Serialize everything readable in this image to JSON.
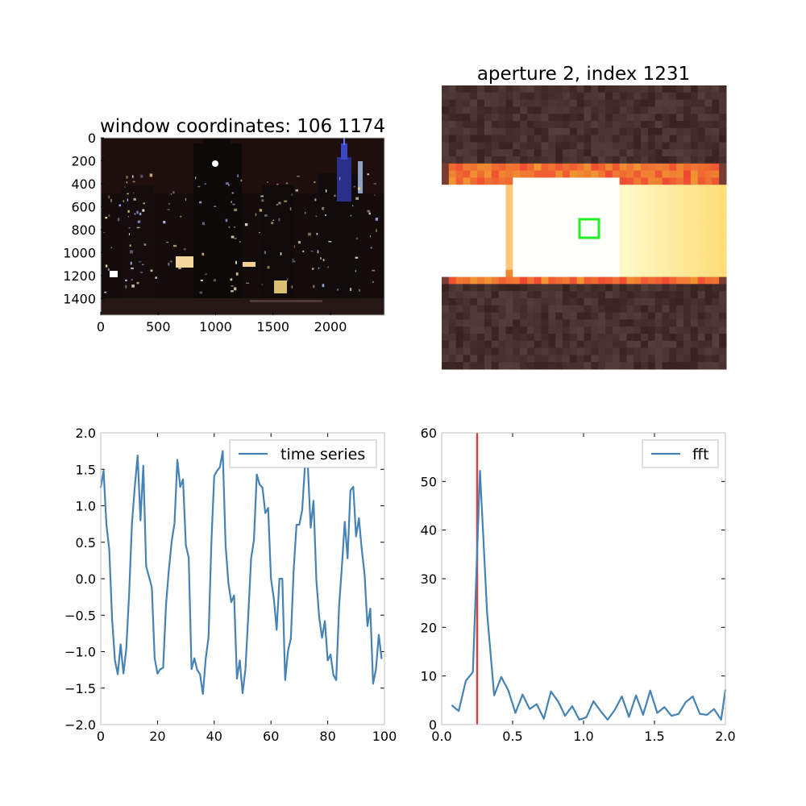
{
  "figure": {
    "subplots": {
      "image_panel": {
        "title": "window coordinates: 106 1174",
        "xticks": [
          "0",
          "500",
          "1000",
          "1500",
          "2000"
        ],
        "yticks": [
          "0",
          "200",
          "400",
          "600",
          "800",
          "1000",
          "1200",
          "1400"
        ]
      },
      "aperture_panel": {
        "title": "aperture 2, index 1231",
        "marker_color": "#22ee22"
      }
    }
  },
  "colors": {
    "series": "#4682b4",
    "vline": "#cc4444",
    "frame": "#bfbfbf"
  },
  "chart_data": [
    {
      "type": "line",
      "xlim": [
        0,
        100
      ],
      "ylim": [
        -2.0,
        2.0
      ],
      "xticks": [
        "0",
        "20",
        "40",
        "60",
        "80",
        "100"
      ],
      "yticks": [
        "2.0",
        "1.5",
        "1.0",
        "0.5",
        "0.0",
        "−0.5",
        "−1.0",
        "−1.5",
        "−2.0"
      ],
      "legend": {
        "label": "time series",
        "position": "upper right"
      },
      "series": [
        {
          "name": "time series",
          "x": [
            0,
            1,
            2,
            3,
            4,
            5,
            6,
            7,
            8,
            9,
            10,
            11,
            12,
            13,
            14,
            15,
            16,
            17,
            18,
            19,
            20,
            21,
            22,
            23,
            24,
            25,
            26,
            27,
            28,
            29,
            30,
            31,
            32,
            33,
            34,
            35,
            36,
            37,
            38,
            39,
            40,
            41,
            42,
            43,
            44,
            45,
            46,
            47,
            48,
            49,
            50,
            51,
            52,
            53,
            54,
            55,
            56,
            57,
            58,
            59,
            60,
            61,
            62,
            63,
            64,
            65,
            66,
            67,
            68,
            69,
            70,
            71,
            72,
            73,
            74,
            75,
            76,
            77,
            78,
            79,
            80,
            81,
            82,
            83,
            84,
            85,
            86,
            87,
            88,
            89,
            90,
            91,
            92,
            93,
            94,
            95,
            96,
            97,
            98,
            99
          ],
          "y": [
            1.25,
            1.48,
            0.74,
            0.4,
            -0.55,
            -1.12,
            -1.31,
            -0.9,
            -1.3,
            -0.96,
            -0.21,
            0.76,
            1.26,
            1.69,
            0.8,
            1.55,
            0.17,
            0.03,
            -0.12,
            -1.09,
            -1.3,
            -1.24,
            -1.22,
            -0.36,
            0.12,
            0.51,
            0.76,
            1.63,
            1.26,
            1.36,
            0.46,
            0.29,
            -1.24,
            -1.09,
            -1.25,
            -1.31,
            -1.58,
            -1.1,
            -0.8,
            0.5,
            1.41,
            1.48,
            1.53,
            1.75,
            0.46,
            -0.06,
            -0.32,
            -0.23,
            -1.37,
            -1.12,
            -1.57,
            -1.24,
            -0.5,
            0.28,
            0.53,
            1.43,
            1.29,
            1.25,
            0.9,
            0.97,
            0.0,
            -0.27,
            -0.7,
            0.0,
            0.0,
            -1.39,
            -0.99,
            -0.82,
            0.12,
            0.74,
            0.74,
            0.94,
            1.56,
            1.54,
            0.7,
            1.07,
            -0.02,
            -0.53,
            -0.81,
            -0.58,
            -1.12,
            -1.04,
            -1.32,
            -1.39,
            -0.38,
            0.17,
            0.78,
            0.28,
            1.21,
            1.26,
            0.58,
            0.83,
            0.4,
            0.06,
            -0.65,
            -0.41,
            -1.44,
            -1.24,
            -0.77,
            -1.1
          ]
        }
      ]
    },
    {
      "type": "line",
      "xlim": [
        0.0,
        2.0
      ],
      "ylim": [
        0,
        60
      ],
      "xticks": [
        "0.0",
        "0.5",
        "1.0",
        "1.5",
        "2.0"
      ],
      "yticks": [
        "60",
        "50",
        "40",
        "30",
        "20",
        "10",
        "0"
      ],
      "vline_x": 0.25,
      "legend": {
        "label": "fft",
        "position": "upper right"
      },
      "series": [
        {
          "name": "fft",
          "x": [
            0.07,
            0.12,
            0.17,
            0.22,
            0.27,
            0.32,
            0.37,
            0.42,
            0.47,
            0.52,
            0.57,
            0.62,
            0.67,
            0.72,
            0.77,
            0.82,
            0.87,
            0.92,
            0.97,
            1.02,
            1.07,
            1.12,
            1.17,
            1.22,
            1.27,
            1.32,
            1.37,
            1.42,
            1.47,
            1.52,
            1.57,
            1.62,
            1.67,
            1.72,
            1.77,
            1.82,
            1.87,
            1.92,
            1.97,
            2.0
          ],
          "y": [
            4.0,
            2.8,
            9.0,
            10.8,
            52.2,
            23.0,
            6.0,
            9.8,
            7.0,
            2.4,
            6.2,
            3.2,
            4.2,
            1.2,
            6.8,
            4.8,
            1.8,
            3.8,
            1.0,
            1.5,
            4.8,
            2.8,
            1.0,
            3.0,
            5.8,
            1.6,
            6.0,
            2.0,
            7.0,
            2.4,
            3.6,
            1.8,
            2.2,
            4.6,
            5.8,
            2.2,
            2.0,
            3.2,
            1.0,
            7.2
          ]
        }
      ]
    }
  ]
}
